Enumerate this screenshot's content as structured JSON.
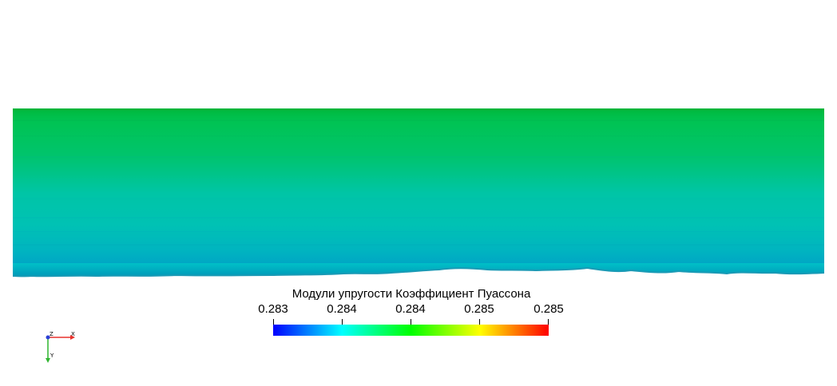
{
  "scalar_bar": {
    "title": "Модули упругости Коэффициент Пуассона",
    "ticks": [
      "0.283",
      "0.284",
      "0.284",
      "0.285",
      "0.285"
    ],
    "colormap": [
      "#0000ff",
      "#00ffff",
      "#00ff00",
      "#ffff00",
      "#ff0000"
    ]
  },
  "axes": {
    "x_label": "X",
    "y_label": "Y",
    "z_label": "Z",
    "x_color": "#e8322d",
    "y_color": "#2fb52f",
    "z_color": "#2b3fd6"
  },
  "field": {
    "top_color": "#00c04e",
    "mid_color": "#00c4a8",
    "bottom_color": "#00b4c4",
    "edge_color": "#1aa0b8"
  }
}
